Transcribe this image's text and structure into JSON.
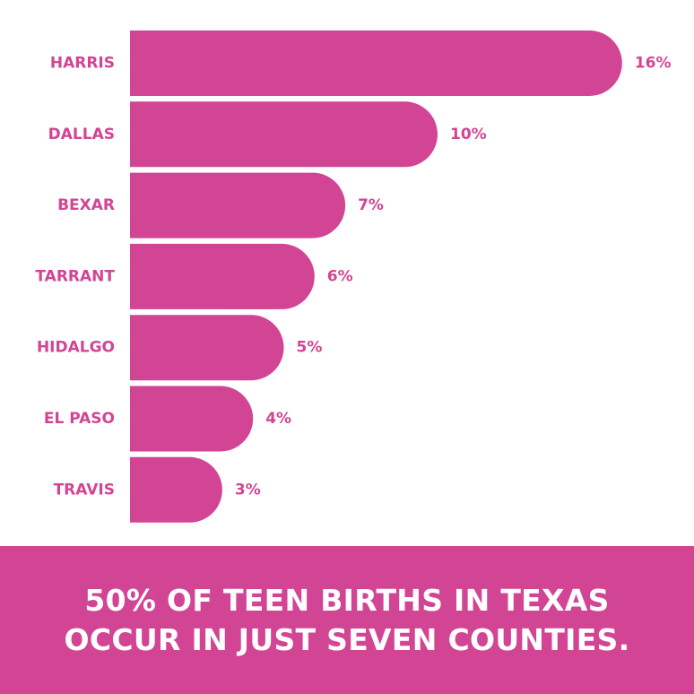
{
  "colors": {
    "bar": "#d24594",
    "label": "#d24594",
    "footer_bg": "#d24594",
    "footer_text": "#ffffff"
  },
  "footer": {
    "line1": "50% OF TEEN BIRTHS IN TEXAS",
    "line2": "OCCUR IN JUST SEVEN COUNTIES."
  },
  "chart_data": {
    "type": "bar",
    "orientation": "horizontal",
    "categories": [
      "HARRIS",
      "DALLAS",
      "BEXAR",
      "TARRANT",
      "HIDALGO",
      "EL PASO",
      "TRAVIS"
    ],
    "values": [
      16,
      10,
      7,
      6,
      5,
      4,
      3
    ],
    "value_labels": [
      "16%",
      "10%",
      "7%",
      "6%",
      "5%",
      "4%",
      "3%"
    ],
    "unit": "%",
    "grid": false,
    "legend": "none"
  }
}
